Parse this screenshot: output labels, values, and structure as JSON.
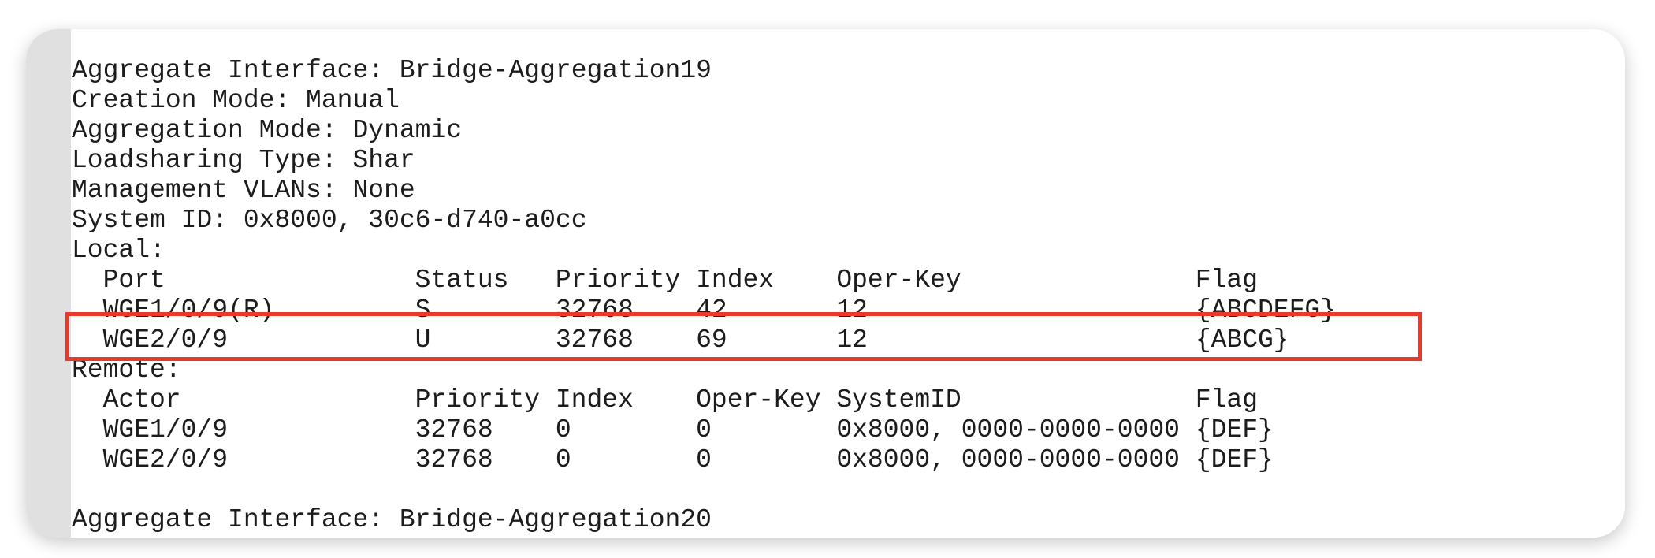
{
  "summary": [
    "Aggregate Interface: Bridge-Aggregation19",
    "Creation Mode: Manual",
    "Aggregation Mode: Dynamic",
    "Loadsharing Type: Shar",
    "Management VLANs: None",
    "System ID: 0x8000, 30c6-d740-a0cc"
  ],
  "local": {
    "label": "Local:",
    "headers": [
      "Port",
      "Status",
      "Priority",
      "Index",
      "Oper-Key",
      "Flag"
    ],
    "rows": [
      [
        "WGE1/0/9(R)",
        "S",
        "32768",
        "42",
        "12",
        "{ABCDEFG}"
      ],
      [
        "WGE2/0/9",
        "U",
        "32768",
        "69",
        "12",
        "{ABCG}"
      ]
    ]
  },
  "remote": {
    "label": "Remote:",
    "headers": [
      "Actor",
      "Priority",
      "Index",
      "Oper-Key",
      "SystemID",
      "Flag"
    ],
    "rows": [
      [
        "WGE1/0/9",
        "32768",
        "0",
        "0",
        "0x8000, 0000-0000-0000",
        "{DEF}"
      ],
      [
        "WGE2/0/9",
        "32768",
        "0",
        "0",
        "0x8000, 0000-0000-0000",
        "{DEF}"
      ]
    ]
  },
  "next_interface": "Aggregate Interface: Bridge-Aggregation20",
  "highlight_color": "#e8392a"
}
